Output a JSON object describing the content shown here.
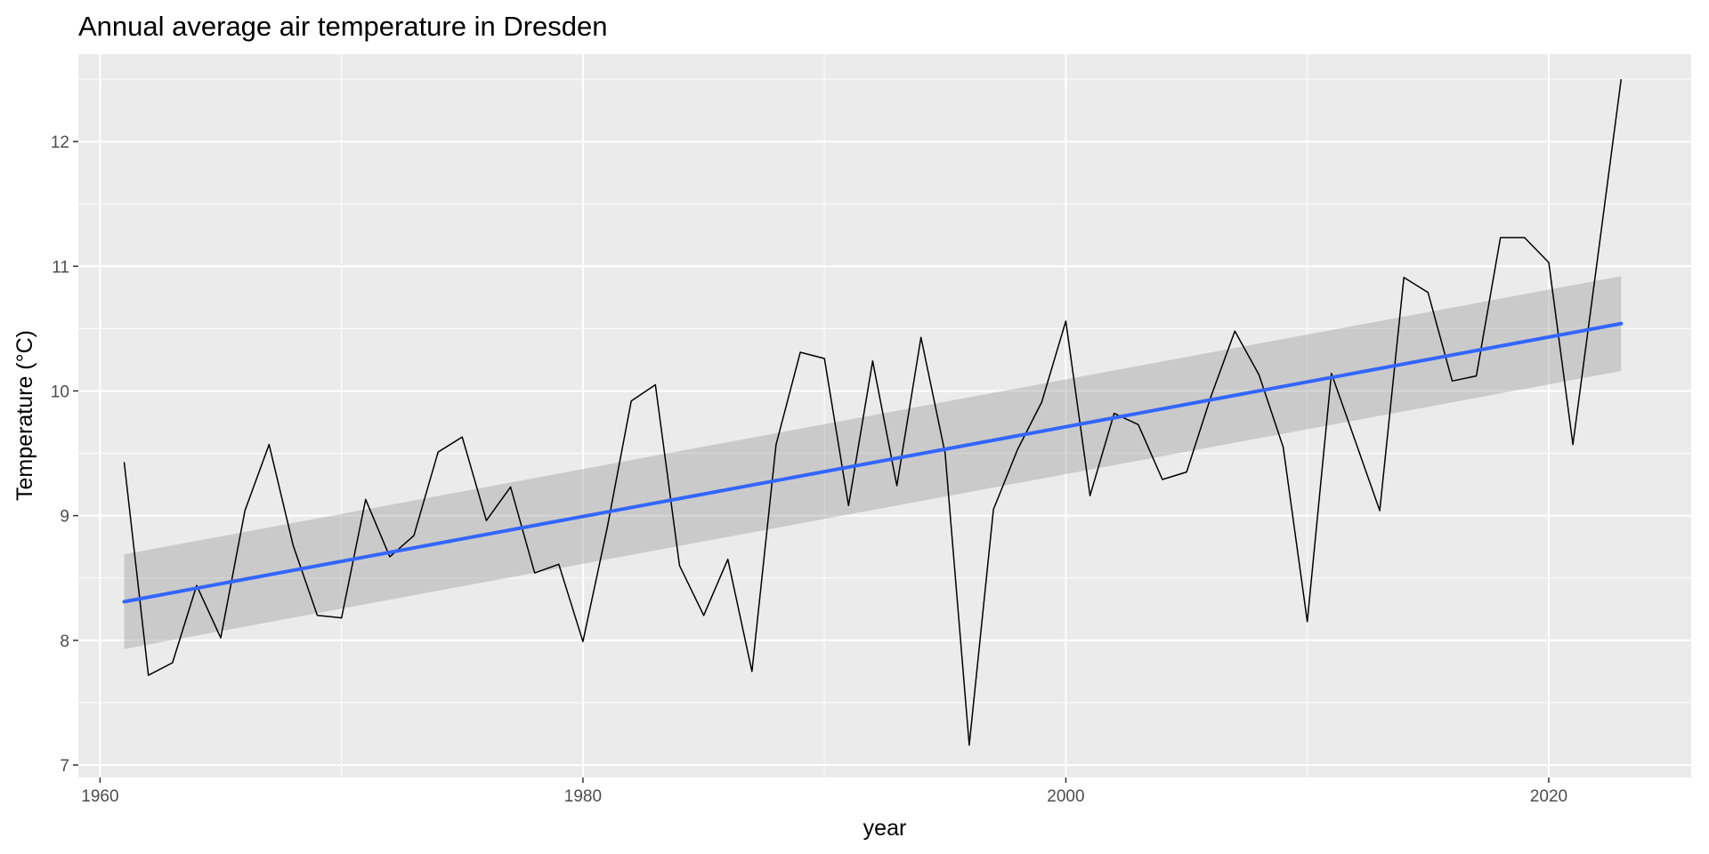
{
  "chart_data": {
    "type": "line",
    "title": "Annual average air temperature in Dresden",
    "xlabel": "year",
    "ylabel": "Temperature (°C)",
    "xlim": [
      1959.1,
      2025.9
    ],
    "ylim": [
      6.9,
      12.7
    ],
    "x_ticks": [
      1960,
      1980,
      2000,
      2020
    ],
    "x_tick_labels": [
      "1960",
      "1980",
      "2000",
      "2020"
    ],
    "y_ticks": [
      7,
      8,
      9,
      10,
      11,
      12
    ],
    "y_tick_labels": [
      "7",
      "8",
      "9",
      "10",
      "11",
      "12"
    ],
    "grid": true,
    "legend": "none",
    "series": [
      {
        "x": [
          1961,
          1962,
          1963,
          1964,
          1965,
          1966,
          1967,
          1968,
          1969,
          1970,
          1971,
          1972,
          1973,
          1974,
          1975,
          1976,
          1977,
          1978,
          1979,
          1980,
          1981,
          1982,
          1983,
          1984,
          1985,
          1986,
          1987,
          1988,
          1989,
          1990,
          1991,
          1992,
          1993,
          1994,
          1995,
          1996,
          1997,
          1998,
          1999,
          2000,
          2001,
          2002,
          2003,
          2004,
          2005,
          2006,
          2007,
          2008,
          2009,
          2010,
          2011,
          2012,
          2013,
          2014,
          2015,
          2016,
          2017,
          2018,
          2019,
          2020,
          2021,
          2022,
          2023
        ],
        "values": [
          9.43,
          7.72,
          7.82,
          8.44,
          8.02,
          9.04,
          9.57,
          8.76,
          8.2,
          8.18,
          9.13,
          8.67,
          8.84,
          9.51,
          9.63,
          8.96,
          9.23,
          8.54,
          8.61,
          7.99,
          8.9,
          9.92,
          10.05,
          8.6,
          8.2,
          8.65,
          7.75,
          9.57,
          10.31,
          10.26,
          9.08,
          10.24,
          9.24,
          10.43,
          9.5,
          7.16,
          9.05,
          9.53,
          9.91,
          10.56,
          9.16,
          9.82,
          9.73,
          9.29,
          9.35,
          9.95,
          10.48,
          10.13,
          9.55,
          8.15,
          10.14,
          9.59,
          9.04,
          10.91,
          10.79,
          10.08,
          10.12,
          11.23,
          11.23,
          11.03,
          9.57,
          11.03,
          12.5
        ],
        "color": "#000000"
      }
    ],
    "trend": {
      "type": "linear smooth with confidence band",
      "x": [
        1961,
        2023
      ],
      "values": [
        8.31,
        10.54
      ],
      "ci_lower": [
        7.93,
        10.16
      ],
      "ci_upper": [
        8.69,
        10.92
      ],
      "color": "#3366ff",
      "band_color": "#999999"
    },
    "colors": {
      "panel": "#ebebeb",
      "grid": "#ffffff",
      "line": "#000000",
      "trend": "#3366ff"
    }
  }
}
